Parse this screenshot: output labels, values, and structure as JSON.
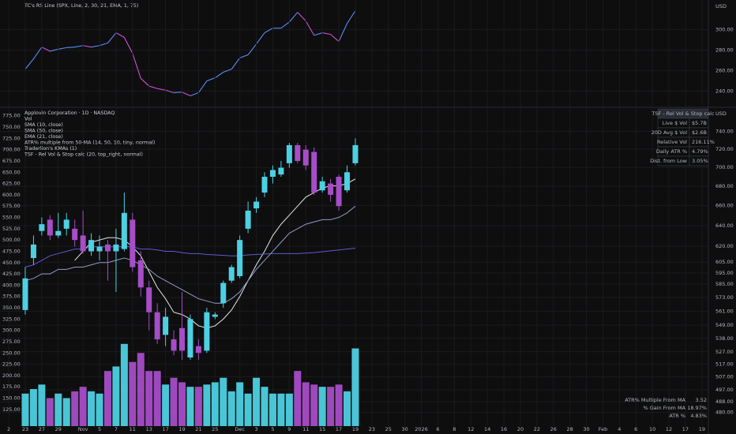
{
  "chart_data": [
    {
      "type": "line",
      "title": "TC's RS Line (SPX, Line, 2, 30, 21, EMA, 1, 75)",
      "ylabel": "USD",
      "y_axis": "right",
      "grid": true,
      "ylim": [
        225,
        329
      ],
      "yticks": [
        {
          "value": 300,
          "label": "300.00"
        },
        {
          "value": 280,
          "label": "280.00"
        },
        {
          "value": 260,
          "label": "260.00"
        },
        {
          "value": 240,
          "label": "240.00"
        }
      ],
      "series": [
        {
          "color": "#5b8cf5",
          "fall_color": "#d24fd6",
          "values": [
            261.5,
            271.5,
            283,
            279,
            281,
            282.5,
            283,
            284.5,
            283,
            284.5,
            287,
            297,
            292.5,
            277,
            252.5,
            245,
            242.5,
            241,
            238.5,
            239,
            235.5,
            238.5,
            250,
            253,
            258.5,
            261.5,
            272.5,
            275.5,
            286,
            297,
            301.5,
            301.5,
            307.5,
            317,
            308.5,
            294.5,
            297,
            295.5,
            288.5,
            306,
            318.5
          ]
        }
      ]
    },
    {
      "type": "candlestick",
      "title": "Applovin Corporation · 1D · NASDAQ",
      "y_axis": "left",
      "grid": true,
      "xlim": [
        -3.06,
        82.78
      ],
      "xticks": [
        {
          "value": -2,
          "label": "2"
        },
        {
          "value": 0,
          "label": "23"
        },
        {
          "value": 2,
          "label": "27"
        },
        {
          "value": 4,
          "label": "29"
        },
        {
          "value": 7,
          "label": "Nov"
        },
        {
          "value": 9,
          "label": "5"
        },
        {
          "value": 11,
          "label": "7"
        },
        {
          "value": 13,
          "label": "11"
        },
        {
          "value": 15,
          "label": "13"
        },
        {
          "value": 17,
          "label": "17"
        },
        {
          "value": 19,
          "label": "19"
        },
        {
          "value": 21,
          "label": "21"
        },
        {
          "value": 23,
          "label": "25"
        },
        {
          "value": 26,
          "label": "Dec"
        },
        {
          "value": 28,
          "label": "3"
        },
        {
          "value": 30,
          "label": "5"
        },
        {
          "value": 32,
          "label": "9"
        },
        {
          "value": 34,
          "label": "11"
        },
        {
          "value": 36,
          "label": "15"
        },
        {
          "value": 38,
          "label": "17"
        },
        {
          "value": 40,
          "label": "19"
        },
        {
          "value": 42,
          "label": "23"
        },
        {
          "value": 44,
          "label": "25"
        },
        {
          "value": 46,
          "label": "30"
        },
        {
          "value": 48,
          "label": "2026"
        },
        {
          "value": 50,
          "label": "6"
        },
        {
          "value": 52,
          "label": "8"
        },
        {
          "value": 54,
          "label": "12"
        },
        {
          "value": 56,
          "label": "14"
        },
        {
          "value": 58,
          "label": "16"
        },
        {
          "value": 60,
          "label": "20"
        },
        {
          "value": 62,
          "label": "22"
        },
        {
          "value": 64,
          "label": "26"
        },
        {
          "value": 66,
          "label": "28"
        },
        {
          "value": 68,
          "label": "30"
        },
        {
          "value": 70,
          "label": "Feb"
        },
        {
          "value": 72,
          "label": "4"
        },
        {
          "value": 74,
          "label": "6"
        },
        {
          "value": 76,
          "label": "10"
        },
        {
          "value": 78,
          "label": "12"
        },
        {
          "value": 80,
          "label": "17"
        },
        {
          "value": 82,
          "label": "19"
        }
      ],
      "ylim": [
        88,
        792
      ],
      "yticks": [
        {
          "value": 775,
          "label": "775.00"
        },
        {
          "value": 750,
          "label": "750.00"
        },
        {
          "value": 725,
          "label": "725.00"
        },
        {
          "value": 700,
          "label": "700.00"
        },
        {
          "value": 675,
          "label": "675.00"
        },
        {
          "value": 650,
          "label": "650.00"
        },
        {
          "value": 625,
          "label": "625.00"
        },
        {
          "value": 600,
          "label": "600.00"
        },
        {
          "value": 575,
          "label": "575.00"
        },
        {
          "value": 550,
          "label": "550.00"
        },
        {
          "value": 525,
          "label": "525.00"
        },
        {
          "value": 500,
          "label": "500.00"
        },
        {
          "value": 475,
          "label": "475.00"
        },
        {
          "value": 450,
          "label": "450.00"
        },
        {
          "value": 425,
          "label": "425.00"
        },
        {
          "value": 400,
          "label": "400.00"
        },
        {
          "value": 375,
          "label": "375.00"
        },
        {
          "value": 350,
          "label": "350.00"
        },
        {
          "value": 325,
          "label": "325.00"
        },
        {
          "value": 300,
          "label": "300.00"
        },
        {
          "value": 275,
          "label": "275.00"
        },
        {
          "value": 250,
          "label": "250.00"
        },
        {
          "value": 225,
          "label": "225.00"
        },
        {
          "value": 200,
          "label": "200.00"
        },
        {
          "value": 175,
          "label": "175.00"
        },
        {
          "value": 150,
          "label": "150.00"
        },
        {
          "value": 125,
          "label": "125.00"
        }
      ],
      "y2label": "USD",
      "y2log": true,
      "y2lim": [
        470,
        767
      ],
      "y2ticks": [
        {
          "value": 740,
          "label": "740.00"
        },
        {
          "value": 720,
          "label": "720.00"
        },
        {
          "value": 700,
          "label": "700.00"
        },
        {
          "value": 680,
          "label": "680.00"
        },
        {
          "value": 660,
          "label": "660.00"
        },
        {
          "value": 640,
          "label": "640.00"
        },
        {
          "value": 620,
          "label": "620.00"
        },
        {
          "value": 605,
          "label": "605.00"
        },
        {
          "value": 595,
          "label": "595.00"
        },
        {
          "value": 585,
          "label": "585.00"
        },
        {
          "value": 573,
          "label": "573.00"
        },
        {
          "value": 561,
          "label": "561.00"
        },
        {
          "value": 549,
          "label": "549.00"
        },
        {
          "value": 538,
          "label": "538.00"
        },
        {
          "value": 527,
          "label": "527.00"
        },
        {
          "value": 517,
          "label": "517.00"
        },
        {
          "value": 507,
          "label": "507.00"
        },
        {
          "value": 497,
          "label": "497.00"
        },
        {
          "value": 488,
          "label": "488.00"
        },
        {
          "value": 480,
          "label": "480.00"
        }
      ],
      "up_color": "#4dd0e1",
      "down_color": "#a64dc7",
      "open": [
        345,
        460,
        520,
        545,
        510,
        525,
        525,
        510,
        475,
        475,
        490,
        475,
        480,
        545,
        455,
        395,
        340,
        290,
        280,
        305,
        240,
        265,
        255,
        330,
        360,
        410,
        420,
        525,
        570,
        605,
        640,
        645,
        670,
        710,
        700,
        695,
        610,
        625,
        640,
        610,
        670
      ],
      "high": [
        440,
        510,
        550,
        555,
        560,
        560,
        545,
        565,
        515,
        510,
        500,
        525,
        605,
        560,
        475,
        410,
        360,
        350,
        300,
        385,
        335,
        280,
        350,
        340,
        410,
        445,
        510,
        585,
        595,
        650,
        665,
        675,
        715,
        715,
        710,
        705,
        640,
        635,
        645,
        665,
        725
      ],
      "low": [
        335,
        445,
        510,
        500,
        505,
        510,
        485,
        470,
        465,
        455,
        410,
        385,
        475,
        430,
        375,
        300,
        270,
        265,
        245,
        235,
        235,
        235,
        250,
        325,
        350,
        405,
        415,
        515,
        560,
        595,
        625,
        640,
        660,
        670,
        655,
        600,
        605,
        585,
        565,
        605,
        665
      ],
      "close": [
        415,
        490,
        535,
        510,
        520,
        545,
        500,
        475,
        500,
        485,
        475,
        490,
        560,
        440,
        395,
        340,
        280,
        330,
        255,
        255,
        325,
        250,
        340,
        335,
        405,
        440,
        500,
        565,
        585,
        640,
        655,
        660,
        710,
        675,
        665,
        605,
        630,
        600,
        575,
        650,
        710
      ],
      "volume": {
        "name": "Vol",
        "values": [
          160,
          170,
          180,
          150,
          160,
          150,
          165,
          175,
          165,
          160,
          210,
          220,
          270,
          230,
          250,
          210,
          210,
          180,
          195,
          185,
          175,
          175,
          180,
          185,
          195,
          165,
          185,
          160,
          195,
          175,
          160,
          160,
          160,
          210,
          185,
          180,
          175,
          175,
          180,
          165,
          260
        ]
      },
      "series": [
        {
          "name": "SMA (10, close)",
          "color": "#e6e6e6",
          "values": [
            null,
            null,
            null,
            null,
            null,
            null,
            455,
            475,
            495,
            500,
            505,
            505,
            500,
            485,
            465,
            430,
            395,
            370,
            340,
            335,
            325,
            310,
            305,
            310,
            325,
            345,
            375,
            410,
            445,
            475,
            510,
            535,
            555,
            575,
            595,
            605,
            615,
            620,
            620,
            625,
            635
          ]
        },
        {
          "name": "SMA (50, close)",
          "color": "#5b5bd0",
          "values": [
            440,
            445,
            455,
            465,
            470,
            475,
            480,
            480,
            485,
            485,
            485,
            485,
            485,
            485,
            480,
            480,
            478,
            475,
            475,
            472,
            470,
            470,
            468,
            467,
            466,
            465,
            465,
            467,
            468,
            469,
            470,
            470,
            470,
            470,
            471,
            472,
            474,
            476,
            478,
            480,
            482
          ]
        },
        {
          "name": "EMA (21, close)",
          "color": "#8e9bc8",
          "values": [
            410,
            415,
            425,
            425,
            435,
            435,
            440,
            440,
            445,
            450,
            450,
            455,
            460,
            455,
            445,
            435,
            420,
            410,
            400,
            390,
            380,
            370,
            365,
            360,
            360,
            370,
            385,
            410,
            435,
            455,
            475,
            495,
            515,
            525,
            535,
            540,
            545,
            545,
            550,
            560,
            575
          ]
        }
      ],
      "indicators": [
        "ATR% multiple from 50-MA (14, 50, 10, tiny, normal)",
        "Traderlion's KMAs (1)",
        "TSF - Rel Vol & Stop calc (20, top_right, normal)"
      ]
    }
  ],
  "rel_vol_table": {
    "title": "TSF - Rel Vol & Stop calc",
    "rows": [
      {
        "label": "Live $ Vol",
        "value": "$5.7B",
        "color": "#e6e6e6"
      },
      {
        "label": "20D Avg $ Vol",
        "value": "$2.6B",
        "color": "#e6e6e6"
      },
      {
        "label": "Relative Vol",
        "value": "216.11%",
        "color": "#4caf50"
      },
      {
        "label": "Daily ATR %",
        "value": "4.79%",
        "color": "#e6e6e6"
      },
      {
        "label": "Dist. from Low",
        "value": "3.05%",
        "color": "#4caf50"
      }
    ]
  },
  "atr_stats": {
    "color": "#e8a33d",
    "rows": [
      {
        "label": "ATR% Multiple From MA",
        "value": "3.52"
      },
      {
        "label": "% Gain From MA",
        "value": "18.97%"
      },
      {
        "label": "ATR %",
        "value": "4.83%"
      }
    ]
  }
}
